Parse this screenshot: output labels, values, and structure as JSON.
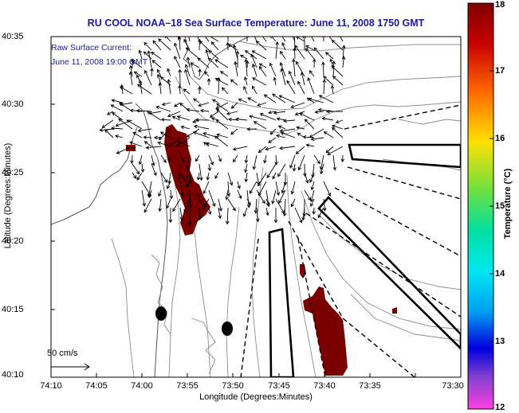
{
  "title": "RU COOL   NOAA–18  Sea Surface Temperature:  June 11, 2008 1750 GMT",
  "annotation": {
    "line1": "Raw Surface Current:",
    "line2": "June 11, 2008 19:00 GMT"
  },
  "x_axis": {
    "label": "Longitude (Degrees:Minutes)",
    "ticks": [
      "74:10",
      "74:05",
      "74:00",
      "73:55",
      "73:50",
      "73:45",
      "73:40",
      "73:35",
      "73:30"
    ]
  },
  "y_axis": {
    "label": "Latitude (Degrees:Minutes)",
    "ticks": [
      "40:35",
      "40:30",
      "40:25",
      "40:20",
      "40:15",
      "40:10"
    ]
  },
  "colorbar": {
    "label": "Temperature (°C)",
    "ticks": [
      "18",
      "17",
      "16",
      "15",
      "14",
      "13",
      "12"
    ],
    "range": [
      12,
      18
    ]
  },
  "scale": {
    "label": "50 cm/s"
  },
  "colors": {
    "title": "#1a1aa0",
    "warm_patch": "#7a0000",
    "bathymetry": "#8c8c8c"
  }
}
